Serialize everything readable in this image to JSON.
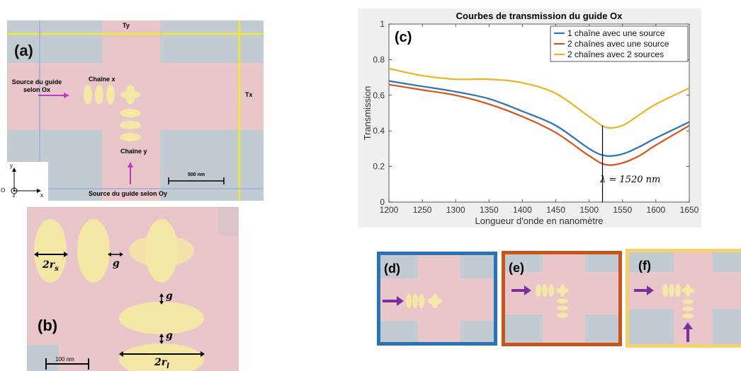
{
  "panel_a": {
    "label": "(a)",
    "ty": "Ty",
    "tx": "Tx",
    "source_ox_line1": "Source du guide",
    "source_ox_line2": "selon Ox",
    "chain_x": "Chaîne x",
    "chain_y": "Chaîne y",
    "scale": "500 nm",
    "source_oy": "Source du guide selon Oy",
    "axis_y": "y",
    "axis_x": "x",
    "axis_z": "z",
    "axis_o": "O"
  },
  "panel_b": {
    "label": "(b)",
    "two_rs": "2r",
    "two_rs_sub": "s",
    "g1": "g",
    "g2": "g",
    "g3": "g",
    "two_rl": "2r",
    "two_rl_sub": "l",
    "scale": "100 nm"
  },
  "panel_c": {
    "label": "(c)",
    "lambda_annotation": "λ = 1520 nm"
  },
  "panels_def": {
    "d": "(d)",
    "e": "(e)",
    "f": "(f)"
  },
  "colors": {
    "series1": "#2c73b6",
    "series2": "#d4541a",
    "series3": "#eeb320",
    "pink": "#e8c6c9",
    "grey": "#c3cbd2",
    "ellipse": "#f5e7a6",
    "arrow": "#7a2fa0"
  },
  "chart_data": {
    "type": "line",
    "title": "Courbes de transmission du guide Ox",
    "xlabel": "Longueur d'onde en nanomètre",
    "ylabel": "Transmission",
    "xlim": [
      1200,
      1650
    ],
    "ylim": [
      0,
      1
    ],
    "x_ticks": [
      "1200",
      "1250",
      "1300",
      "1350",
      "1400",
      "1450",
      "1500",
      "1550",
      "1600",
      "1650"
    ],
    "y_ticks": [
      "0",
      "0.2",
      "0.4",
      "0.6",
      "0.8",
      "1"
    ],
    "legend_position": "top-right",
    "x": [
      1200,
      1250,
      1300,
      1350,
      1400,
      1450,
      1500,
      1525,
      1550,
      1575,
      1600,
      1650
    ],
    "series": [
      {
        "name": "1 chaîne avec une source",
        "values": [
          0.68,
          0.65,
          0.62,
          0.58,
          0.51,
          0.43,
          0.3,
          0.26,
          0.27,
          0.31,
          0.36,
          0.45
        ]
      },
      {
        "name": "2 chaînes avec une source",
        "values": [
          0.66,
          0.63,
          0.6,
          0.55,
          0.48,
          0.39,
          0.26,
          0.21,
          0.22,
          0.26,
          0.32,
          0.43
        ]
      },
      {
        "name": "2 chaînes avec 2 sources",
        "values": [
          0.75,
          0.71,
          0.69,
          0.69,
          0.67,
          0.61,
          0.48,
          0.42,
          0.43,
          0.49,
          0.55,
          0.64
        ]
      }
    ]
  }
}
